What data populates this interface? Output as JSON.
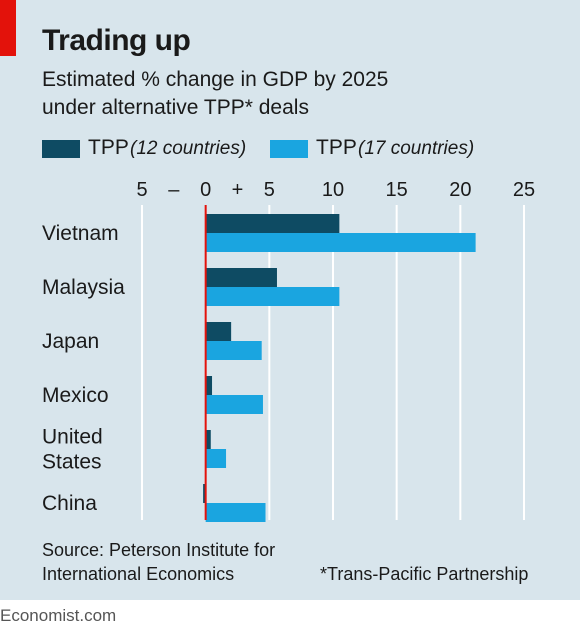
{
  "chart_data": {
    "type": "bar",
    "orientation": "horizontal",
    "title": "Trading up",
    "subtitle_lines": [
      "Estimated % change in GDP by 2025",
      "under alternative TPP* deals"
    ],
    "categories": [
      {
        "lines": [
          "Vietnam"
        ]
      },
      {
        "lines": [
          "Malaysia"
        ]
      },
      {
        "lines": [
          "Japan"
        ]
      },
      {
        "lines": [
          "Mexico"
        ]
      },
      {
        "lines": [
          "United",
          "States"
        ]
      },
      {
        "lines": [
          "China"
        ]
      }
    ],
    "series": [
      {
        "name": "TPP",
        "note": "(12 countries)",
        "color": "#0e4b63",
        "values": [
          10.5,
          5.6,
          2.0,
          0.5,
          0.4,
          -0.2
        ]
      },
      {
        "name": "TPP",
        "note": "(17 countries)",
        "color": "#1aa5e0",
        "values": [
          21.2,
          10.5,
          4.4,
          4.5,
          1.6,
          4.7
        ]
      }
    ],
    "xlim": [
      -5,
      25
    ],
    "ticks": [
      {
        "value": -5,
        "label": "5"
      },
      {
        "value": 0,
        "label": "0"
      },
      {
        "value": 5,
        "label": "5"
      },
      {
        "value": 10,
        "label": "10"
      },
      {
        "value": 15,
        "label": "15"
      },
      {
        "value": 20,
        "label": "20"
      },
      {
        "value": 25,
        "label": "25"
      }
    ],
    "sign_labels": {
      "minus": "–",
      "plus": "+"
    },
    "gridlines": true,
    "zero_line_color": "#e3120b",
    "source_lines": [
      "Source: Peterson Institute for",
      "International Economics"
    ],
    "footnote": "*Trans-Pacific Partnership"
  },
  "credit": "Economist.com",
  "colors": {
    "background": "#d8e5ec",
    "accent": "#e3120b",
    "text": "#1a1a1a"
  }
}
